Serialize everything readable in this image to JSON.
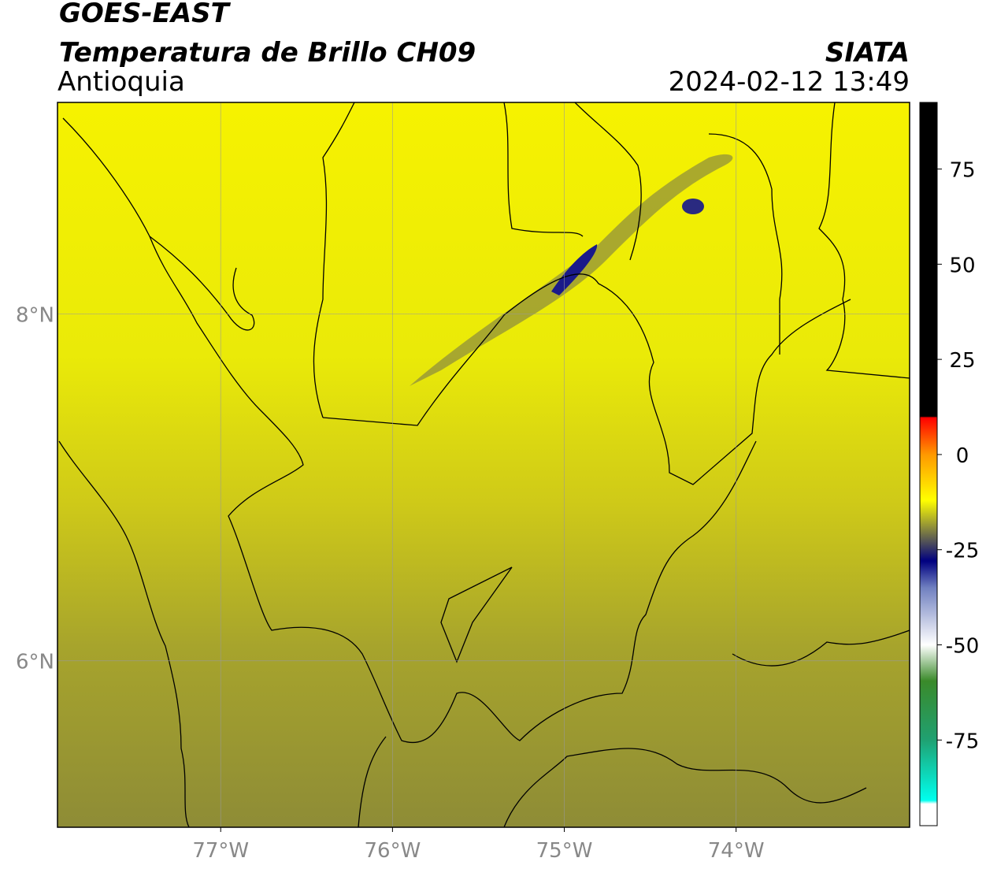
{
  "header": {
    "title": "GOES-EAST",
    "subtitle": "Temperatura de Brillo CH09",
    "region": "Antioquia",
    "source": "SIATA",
    "datetime": "2024-02-12 13:49"
  },
  "map": {
    "xlim": [
      -77.95,
      -72.99
    ],
    "ylim": [
      5.04,
      9.22
    ],
    "xticks": [
      {
        "value": -77,
        "label": "77°W"
      },
      {
        "value": -76,
        "label": "76°W"
      },
      {
        "value": -75,
        "label": "75°W"
      },
      {
        "value": -74,
        "label": "74°W"
      }
    ],
    "yticks": [
      {
        "value": 6,
        "label": "6°N"
      },
      {
        "value": 8,
        "label": "8°N"
      }
    ],
    "grid": true
  },
  "colorbar": {
    "clim": [
      -97.5,
      92.5
    ],
    "ticks": [
      -75,
      -50,
      -25,
      0,
      25,
      50,
      75
    ]
  }
}
